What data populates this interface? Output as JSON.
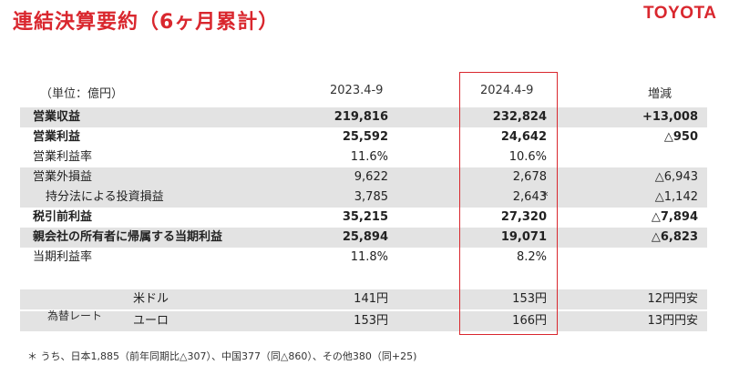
{
  "title": "連結決算要約（6ヶ月累計）",
  "brand": "TOYOTA",
  "header": {
    "unit": "（単位：億円）",
    "col_prev": "2023.4-9",
    "col_curr": "2024.4-9",
    "col_diff": "増減"
  },
  "rows": [
    {
      "label": "営業収益",
      "prev": "219,816",
      "curr": "232,824",
      "diff": "+13,008"
    },
    {
      "label": "営業利益",
      "prev": "25,592",
      "curr": "24,642",
      "diff": "△950"
    },
    {
      "label": "営業利益率",
      "prev": "11.6%",
      "curr": "10.6%",
      "diff": ""
    },
    {
      "label": "営業外損益",
      "prev": "9,622",
      "curr": "2,678",
      "diff": "△6,943"
    },
    {
      "label": "持分法による投資損益",
      "prev": "3,785",
      "curr": "2,643",
      "note": "*",
      "diff": "△1,142"
    },
    {
      "label": "税引前利益",
      "prev": "35,215",
      "curr": "27,320",
      "diff": "△7,894"
    },
    {
      "label": "親会社の所有者に帰属する当期利益",
      "prev": "25,894",
      "curr": "19,071",
      "diff": "△6,823"
    },
    {
      "label": "当期利益率",
      "prev": "11.8%",
      "curr": "8.2%",
      "diff": ""
    }
  ],
  "fx": {
    "label": "為替レート",
    "rows": [
      {
        "currency": "米ドル",
        "prev": "141円",
        "curr": "153円",
        "diff": "12円円安"
      },
      {
        "currency": "ユーロ",
        "prev": "153円",
        "curr": "166円",
        "diff": "13円円安"
      }
    ]
  },
  "footnote": "＊ うち、日本1,885（前年同期比△307）、中国377（同△860）、その他380（同+25)"
}
